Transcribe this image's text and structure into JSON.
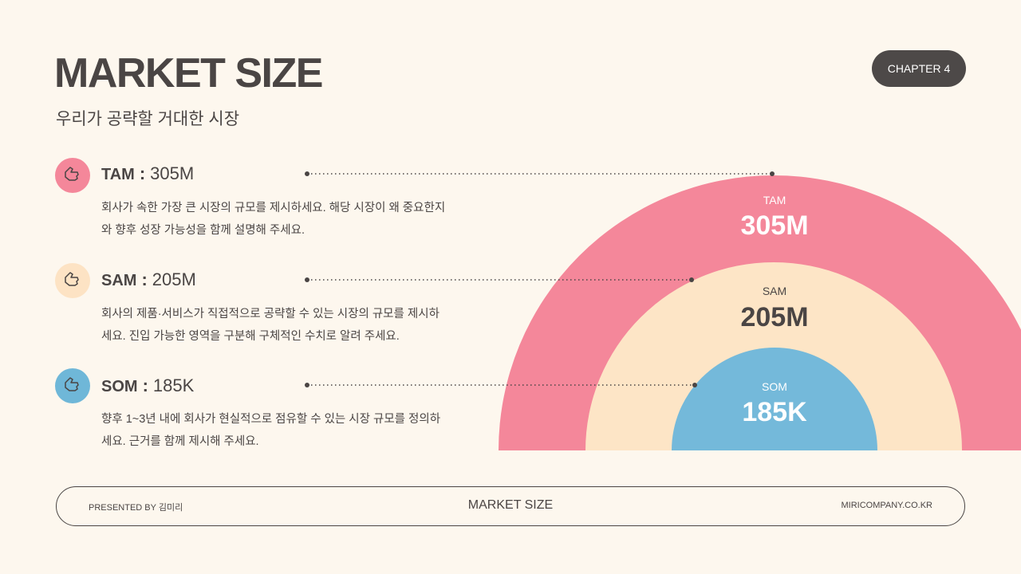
{
  "header": {
    "title": "MARKET SIZE",
    "subtitle": "우리가 공략할 거대한 시장",
    "chapter": "CHAPTER 4"
  },
  "separator": ":",
  "items": [
    {
      "label": "TAM",
      "value": "305M",
      "description": [
        "회사가 속한 가장 큰 시장의 규모를 제시하세요. 해당 시장이 왜 중요한지",
        "와 향후 성장 가능성을 함께 설명해 주세요."
      ]
    },
    {
      "label": "SAM",
      "value": "205M",
      "description": [
        "회사의 제품·서비스가 직접적으로 공략할 수 있는 시장의 규모를 제시하",
        "세요. 진입 가능한 영역을 구분해 구체적인 수치로 알려 주세요."
      ]
    },
    {
      "label": "SOM",
      "value": "185K",
      "description": [
        "향후 1~3년 내에 회사가 현실적으로 점유할 수 있는 시장 규모를 정의하",
        "세요. 근거를 함께 제시해 주세요."
      ]
    }
  ],
  "footer": {
    "presenter": "PRESENTED BY 김미리",
    "center": "MARKET SIZE",
    "site": "MIRICOMPANY.CO.KR"
  }
}
